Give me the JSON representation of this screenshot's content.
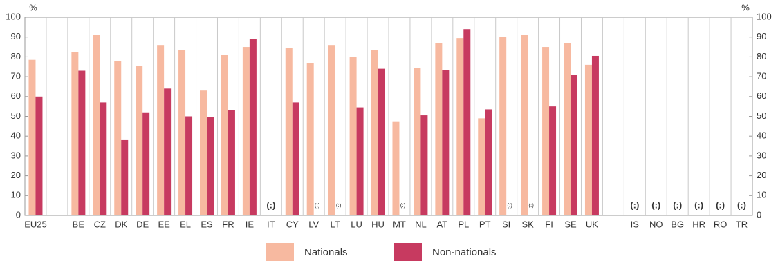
{
  "chart_data": {
    "type": "bar",
    "y_unit": "%",
    "categories": [
      "EU25",
      null,
      "BE",
      "CZ",
      "DK",
      "DE",
      "EE",
      "EL",
      "ES",
      "FR",
      "IE",
      "IT",
      "CY",
      "LV",
      "LT",
      "LU",
      "HU",
      "MT",
      "NL",
      "AT",
      "PL",
      "PT",
      "SI",
      "SK",
      "FI",
      "SE",
      "UK",
      null,
      "IS",
      "NO",
      "BG",
      "HR",
      "RO",
      "TR"
    ],
    "series": [
      {
        "name": "Nationals",
        "color": "#f7b9a0",
        "values": [
          78.5,
          null,
          82.5,
          91,
          78,
          75.5,
          86,
          83.5,
          63,
          81,
          85,
          null,
          84.5,
          77,
          86,
          80,
          83.5,
          47.5,
          74.5,
          87,
          89.5,
          49,
          90,
          91,
          85,
          87,
          76,
          null,
          null,
          null,
          null,
          null,
          null,
          null
        ]
      },
      {
        "name": "Non-nationals",
        "color": "#c73a60",
        "values": [
          60,
          null,
          73,
          57,
          38,
          52,
          64,
          50,
          49.5,
          53,
          89,
          null,
          57,
          null,
          null,
          54.5,
          74,
          null,
          50.5,
          73.5,
          94,
          53.5,
          null,
          null,
          55,
          71,
          80.5,
          null,
          null,
          null,
          null,
          null,
          null,
          null
        ]
      }
    ],
    "missing_label": "(:)",
    "ylim": [
      0,
      100
    ],
    "yticks": [
      0,
      10,
      20,
      30,
      40,
      50,
      60,
      70,
      80,
      90,
      100
    ]
  }
}
